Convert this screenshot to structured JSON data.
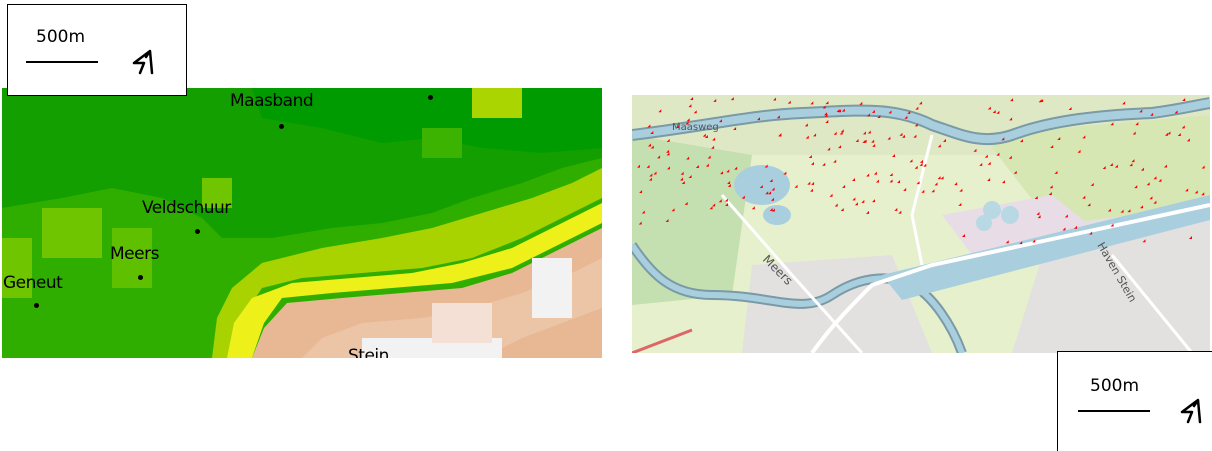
{
  "elevation_map": {
    "places": [
      {
        "label": "Maasband"
      },
      {
        "label": "Veldschuur"
      },
      {
        "label": "Meers"
      },
      {
        "label": "Geneut"
      },
      {
        "label": "Stein"
      }
    ],
    "scale": {
      "label": "500m"
    },
    "north_icon": "north-arrow-icon"
  },
  "street_map": {
    "labels": [
      "Meers",
      "Haven Stein",
      "Maasweg"
    ],
    "scale": {
      "label": "500m"
    },
    "north_icon": "north-arrow-icon",
    "colors": {
      "river": "#a9cfdf",
      "canal": "#a9cfdf",
      "forest": "#c5e0b0",
      "meadow": "#e6f0cc",
      "urban": "#e3e0e0",
      "points": "#ff0000"
    }
  },
  "legend_colors": [
    "#009e00",
    "#33b000",
    "#66c200",
    "#a9d300",
    "#eef01a",
    "#e5c840",
    "#e8b894",
    "#f2f2f2"
  ]
}
